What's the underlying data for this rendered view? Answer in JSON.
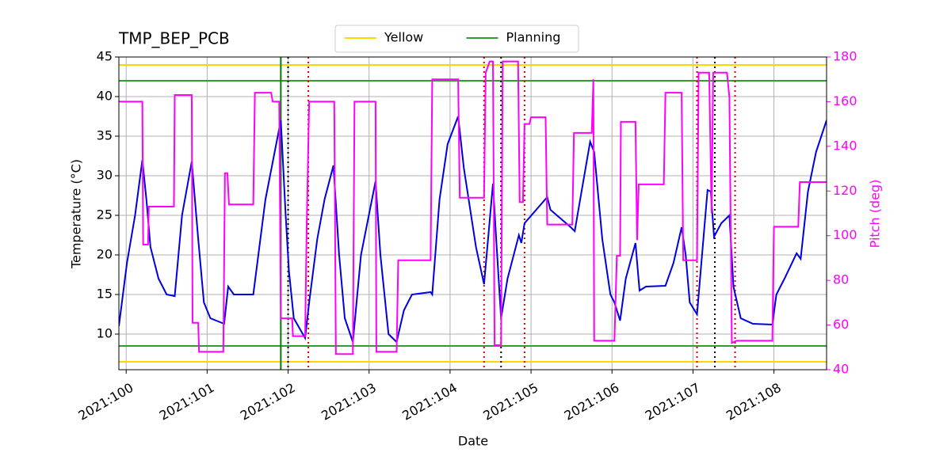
{
  "chart_data": {
    "type": "line",
    "title": "TMP_BEP_PCB",
    "xlabel": "Date",
    "ylabel": "Temperature (°C)",
    "y2label": "Pitch (deg)",
    "y2label_color": "#ff00ff",
    "xlim": [
      99.91,
      108.65
    ],
    "ylim": [
      5.5,
      45
    ],
    "y2lim": [
      40,
      180
    ],
    "xticks": [
      {
        "value": 100,
        "label": "2021:100"
      },
      {
        "value": 101,
        "label": "2021:101"
      },
      {
        "value": 102,
        "label": "2021:102"
      },
      {
        "value": 103,
        "label": "2021:103"
      },
      {
        "value": 104,
        "label": "2021:104"
      },
      {
        "value": 105,
        "label": "2021:105"
      },
      {
        "value": 106,
        "label": "2021:106"
      },
      {
        "value": 107,
        "label": "2021:107"
      },
      {
        "value": 108,
        "label": "2021:108"
      }
    ],
    "yticks": [
      10,
      15,
      20,
      25,
      30,
      35,
      40,
      45
    ],
    "y2ticks": [
      40,
      60,
      80,
      100,
      120,
      140,
      160,
      180
    ],
    "grid": true,
    "legend": "upper center",
    "reference_lines": [
      {
        "name": "Yellow",
        "color": "#ffd700",
        "values": [
          44,
          6.5
        ]
      },
      {
        "name": "Planning",
        "color": "#2ca02c",
        "values": [
          42,
          8.5
        ]
      }
    ],
    "vertical_lines": [
      {
        "color": "#008000",
        "style": "solid",
        "x": [
          101.91
        ]
      },
      {
        "color": "#000000",
        "style": "dotted",
        "x": [
          102.0,
          104.63,
          107.27
        ]
      },
      {
        "color": "#dd0000",
        "style": "dotted",
        "x": [
          102.25,
          104.42,
          104.92,
          107.05,
          107.52
        ]
      }
    ],
    "series": [
      {
        "color": "#0000e0",
        "x": [
          99.91,
          100.01,
          100.11,
          100.2,
          100.25,
          100.3,
          100.4,
          100.5,
          100.6,
          100.69,
          100.81,
          100.89,
          100.96,
          101.04,
          101.21,
          101.26,
          101.33,
          101.57,
          101.72,
          101.91,
          101.97,
          102.01,
          102.07,
          102.21,
          102.26,
          102.36,
          102.45,
          102.56,
          102.63,
          102.7,
          102.8,
          102.9,
          103.08,
          103.14,
          103.24,
          103.34,
          103.43,
          103.53,
          103.76,
          103.78,
          103.87,
          103.97,
          104.1,
          104.17,
          104.32,
          104.42,
          104.53,
          104.57,
          104.63,
          104.71,
          104.85,
          104.88,
          104.92,
          105.2,
          105.24,
          105.49,
          105.54,
          105.59,
          105.73,
          105.78,
          105.88,
          105.98,
          106.03,
          106.1,
          106.17,
          106.29,
          106.34,
          106.42,
          106.66,
          106.76,
          106.86,
          106.91,
          106.96,
          107.05,
          107.18,
          107.22,
          107.26,
          107.35,
          107.45,
          107.5,
          107.59,
          107.74,
          107.98,
          108.03,
          108.13,
          108.28,
          108.33,
          108.42,
          108.52,
          108.65
        ],
        "values": [
          11,
          19,
          25,
          32,
          27,
          21,
          17,
          15,
          14.8,
          25,
          31.8,
          22,
          14,
          12,
          11.3,
          16,
          15,
          15,
          27,
          37,
          25,
          18,
          12,
          9.5,
          14,
          22,
          27,
          31.3,
          20,
          12,
          9,
          20,
          29.3,
          20,
          10,
          9,
          13,
          15,
          15.3,
          15,
          27,
          34,
          37.5,
          31,
          21,
          16.3,
          29,
          22,
          12,
          17,
          22.5,
          21.5,
          24,
          27.3,
          25.7,
          23.5,
          23,
          26,
          34.3,
          33,
          22,
          15,
          14,
          11.7,
          17,
          21.5,
          15.5,
          16,
          16.1,
          19,
          23.5,
          20,
          14,
          12.5,
          28.2,
          28,
          22.3,
          24,
          25,
          16,
          12,
          11.3,
          11.2,
          15,
          17,
          20.2,
          19.5,
          28,
          33,
          37
        ]
      },
      {
        "color": "#ff00ff",
        "axis": "y2",
        "x": [
          99.91,
          100.2,
          100.21,
          100.27,
          100.28,
          100.59,
          100.6,
          100.81,
          100.82,
          100.89,
          100.9,
          101.2,
          101.22,
          101.25,
          101.27,
          101.57,
          101.59,
          101.79,
          101.81,
          101.89,
          101.91,
          102.05,
          102.06,
          102.21,
          102.23,
          102.26,
          102.57,
          102.59,
          102.8,
          102.82,
          103.08,
          103.09,
          103.34,
          103.36,
          103.76,
          103.78,
          104.1,
          104.12,
          104.42,
          104.44,
          104.49,
          104.53,
          104.55,
          104.63,
          104.65,
          104.84,
          104.86,
          104.9,
          104.92,
          104.98,
          105.0,
          105.18,
          105.2,
          105.51,
          105.53,
          105.75,
          105.77,
          105.78,
          106.03,
          106.06,
          106.1,
          106.11,
          106.29,
          106.31,
          106.33,
          106.64,
          106.66,
          106.86,
          106.88,
          107.05,
          107.07,
          107.2,
          107.23,
          107.25,
          107.42,
          107.45,
          107.48,
          107.54,
          107.98,
          108.0,
          108.3,
          108.32,
          108.65
        ],
        "values": [
          160,
          160,
          96,
          96,
          113,
          113,
          163,
          163,
          61,
          61,
          48,
          48,
          128,
          128,
          114,
          114,
          164,
          164,
          160,
          160,
          63,
          63,
          55,
          55,
          105,
          160,
          160,
          47,
          47,
          160,
          160,
          48,
          48,
          89,
          89,
          170,
          170,
          117,
          117,
          173,
          178,
          178,
          51,
          51,
          178,
          178,
          115,
          115,
          150,
          150,
          153,
          153,
          105,
          105,
          146,
          146,
          170,
          53,
          53,
          91,
          91,
          151,
          151,
          98,
          123,
          123,
          164,
          164,
          89,
          89,
          173,
          173,
          110,
          173,
          173,
          162,
          52,
          53,
          53,
          104,
          104,
          124,
          124
        ]
      }
    ]
  }
}
